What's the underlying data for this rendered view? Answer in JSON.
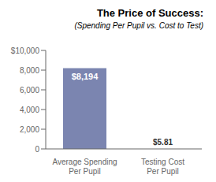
{
  "chart_data": {
    "type": "bar",
    "title": "The Price of Success:",
    "subtitle": "(Spending Per Pupil vs. Cost to Test)",
    "categories": [
      "Average Spending\nPer Pupil",
      "Testing Cost\nPer Pupil"
    ],
    "values": [
      8194,
      5.81
    ],
    "value_labels": [
      "$8,194",
      "$5.81"
    ],
    "data_labels": true,
    "color": "#7b85b0",
    "ylim": [
      0,
      10000
    ],
    "yticks": [
      0,
      {
        "value": 2000,
        "label": "2,000"
      },
      {
        "value": 4000,
        "label": "4,000"
      },
      {
        "value": 6000,
        "label": "6,000"
      },
      {
        "value": 8000,
        "label": "8,000"
      },
      {
        "value": 10000,
        "label": "$10,000"
      }
    ],
    "grid": false
  }
}
